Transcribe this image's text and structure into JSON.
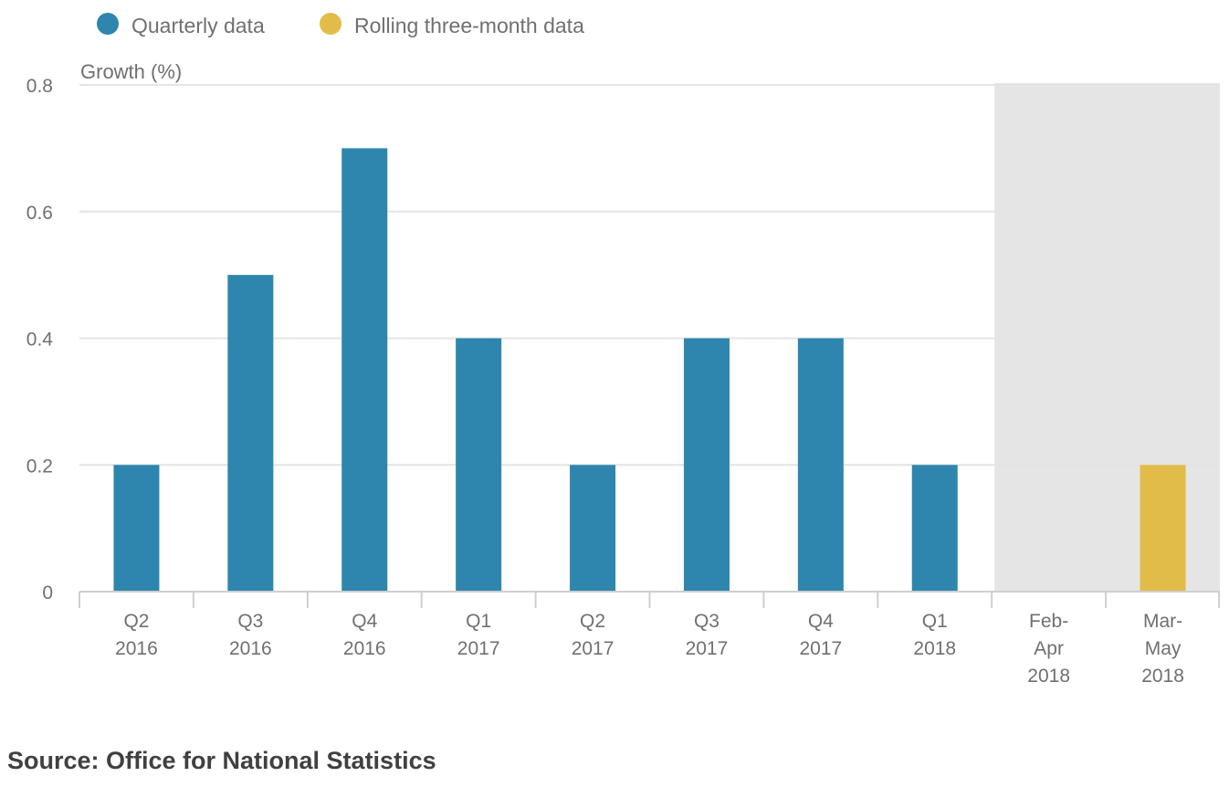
{
  "chart_data": {
    "type": "bar",
    "title": "",
    "xlabel": "",
    "ylabel": "Growth (%)",
    "ylim": [
      0,
      0.8
    ],
    "yticks": [
      "0",
      "0.2",
      "0.4",
      "0.6",
      "0.8"
    ],
    "ytick_values": [
      0,
      0.2,
      0.4,
      0.6,
      0.8
    ],
    "grid": true,
    "legend_position": "top-left",
    "categories": [
      [
        "Q2",
        "2016"
      ],
      [
        "Q3",
        "2016"
      ],
      [
        "Q4",
        "2016"
      ],
      [
        "Q1",
        "2017"
      ],
      [
        "Q2",
        "2017"
      ],
      [
        "Q3",
        "2017"
      ],
      [
        "Q4",
        "2017"
      ],
      [
        "Q1",
        "2018"
      ],
      [
        "Feb-",
        "Apr",
        "2018"
      ],
      [
        "Mar-",
        "May",
        "2018"
      ]
    ],
    "series": [
      {
        "name": "Quarterly data",
        "color": "#2e86ae",
        "values": [
          0.2,
          0.5,
          0.7,
          0.4,
          0.2,
          0.4,
          0.4,
          0.2,
          null,
          null
        ]
      },
      {
        "name": "Rolling three-month data",
        "color": "#e2bc49",
        "values": [
          null,
          null,
          null,
          null,
          null,
          null,
          null,
          null,
          null,
          0.2
        ]
      }
    ],
    "shaded_region": {
      "from_category": 8,
      "to_category": 9,
      "color": "#e5e5e5"
    }
  },
  "source": "Source: Office for National Statistics"
}
